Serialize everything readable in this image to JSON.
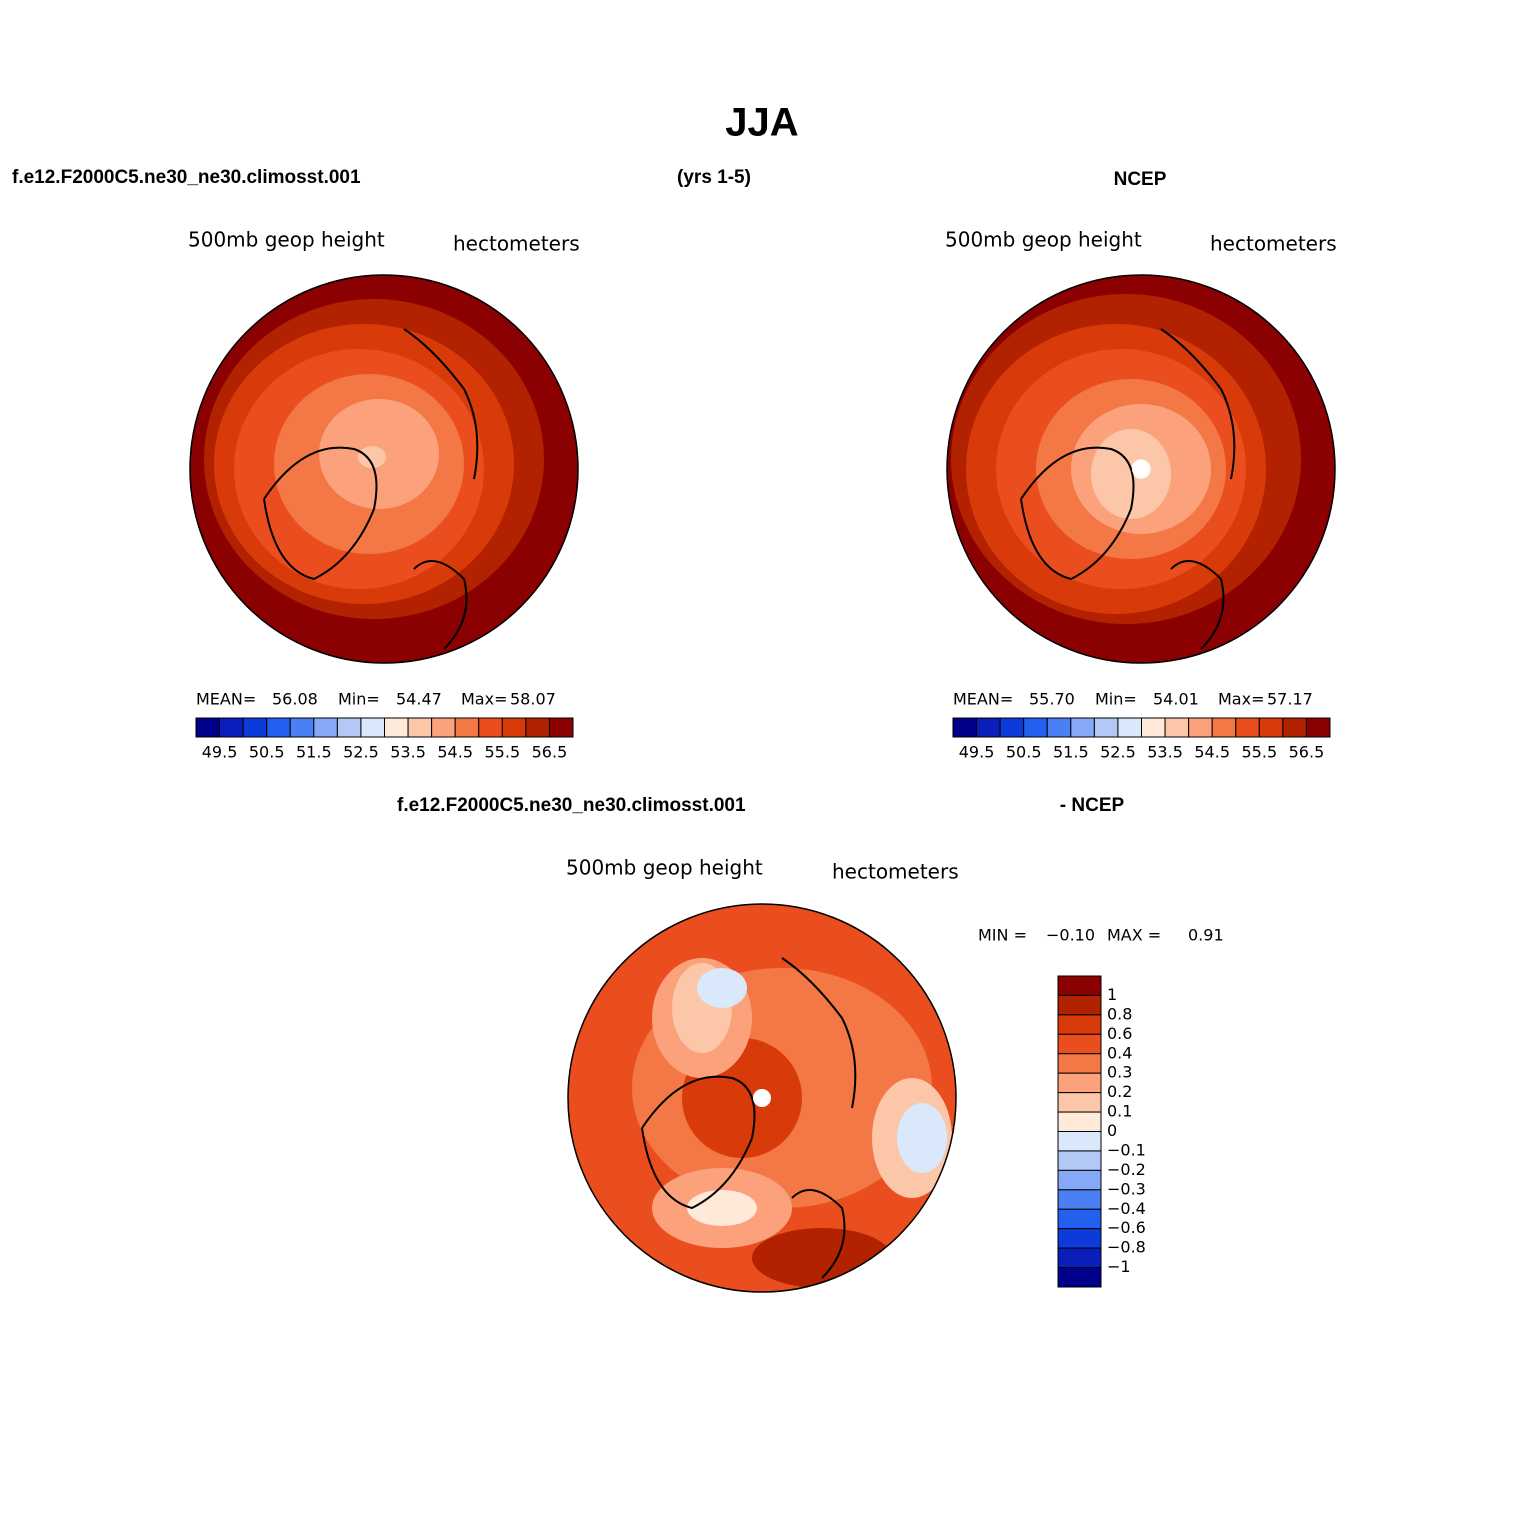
{
  "title": "JJA",
  "header": {
    "left": "f.e12.F2000C5.ne30_ne30.climosst.001",
    "center": "(yrs 1-5)",
    "right": "NCEP"
  },
  "palette": [
    "#00008b",
    "#0a1ebb",
    "#0d3bd9",
    "#2260f0",
    "#4b7ff5",
    "#85a8f7",
    "#b4c8f5",
    "#d9e8fb",
    "#ffe9d9",
    "#fcc6a8",
    "#fba27c",
    "#f47845",
    "#ea4e1f",
    "#d93a0a",
    "#b22200",
    "#8b0000"
  ],
  "panels": [
    {
      "variable": "500mb geop height",
      "units": "hectometers",
      "stats": [
        "MEAN=",
        "56.08",
        "Min=",
        "54.47",
        "Max=",
        "58.07"
      ],
      "colorbar_labels": [
        "49.5",
        "50.5",
        "51.5",
        "52.5",
        "53.5",
        "54.5",
        "55.5",
        "56.5"
      ]
    },
    {
      "variable": "500mb geop height",
      "units": "hectometers",
      "stats": [
        "MEAN=",
        "55.70",
        "Min=",
        "54.01",
        "Max=",
        "57.17"
      ],
      "colorbar_labels": [
        "49.5",
        "50.5",
        "51.5",
        "52.5",
        "53.5",
        "54.5",
        "55.5",
        "56.5"
      ]
    }
  ],
  "difference": {
    "left": "f.e12.F2000C5.ne30_ne30.climosst.001",
    "right": "- NCEP",
    "variable": "500mb geop height",
    "units": "hectometers",
    "stats": [
      "MIN =",
      "−0.10",
      "MAX =",
      "0.91"
    ],
    "colorbar_labels": [
      "1",
      "0.8",
      "0.6",
      "0.4",
      "0.3",
      "0.2",
      "0.1",
      "0",
      "−0.1",
      "−0.2",
      "−0.3",
      "−0.4",
      "−0.6",
      "−0.8",
      "−1"
    ]
  }
}
